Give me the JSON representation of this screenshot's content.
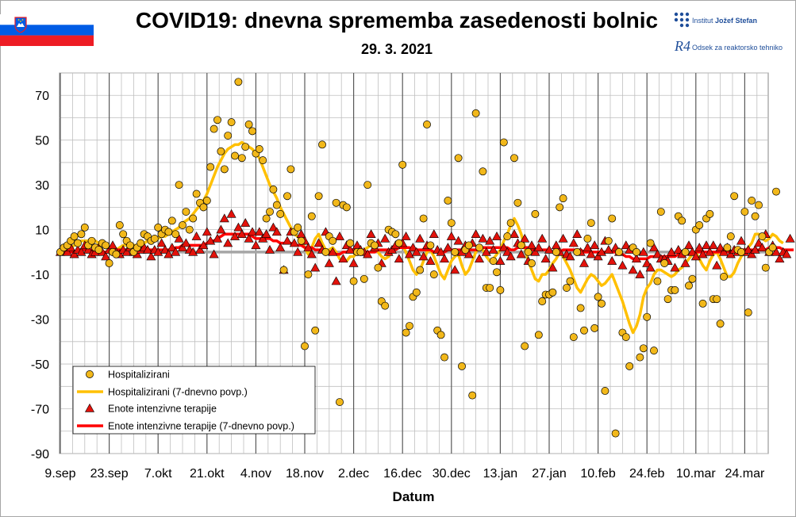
{
  "header": {
    "title": "COVID19: dnevna sprememba zasedenosti bolnic",
    "date": "29. 3. 2021",
    "logo_ijs_prefix": "Institut ",
    "logo_ijs_name": "Jožef Stefan",
    "logo_r4_mark": "R4",
    "logo_r4_text": "Odsek za reaktorsko tehniko"
  },
  "colors": {
    "hosp_marker": "#f2b81a",
    "hosp_line": "#ffc000",
    "icu_marker": "#e3120b",
    "icu_line": "#ff0000",
    "zero_line": "#a6a6a6",
    "grid": "#bfbfbf",
    "vgrid_major": "#595959"
  },
  "chart_data": {
    "type": "scatter",
    "title": "COVID19: dnevna sprememba zasedenosti bolnic",
    "subtitle": "29. 3. 2021",
    "xlabel": "Datum",
    "ylabel": "",
    "ylim": [
      -90,
      80
    ],
    "yticks": [
      70,
      50,
      30,
      10,
      -10,
      -30,
      -50,
      -70,
      -90
    ],
    "x_start": "2020-09-09",
    "x_end": "2021-03-29",
    "xticks": [
      "9.sep",
      "23.sep",
      "7.okt",
      "21.okt",
      "4.nov",
      "18.nov",
      "2.dec",
      "16.dec",
      "30.dec",
      "13.jan",
      "27.jan",
      "10.feb",
      "24.feb",
      "10.mar",
      "24.mar"
    ],
    "grid": true,
    "legend_position": "bottom-left",
    "legend": [
      "Hospitalizirani",
      "Hospitalizirani (7-dnevno povp.)",
      "Enote intenzivne terapije",
      "Enote intenzivne terapije (7-dnevno povp.)"
    ],
    "series": [
      {
        "name": "Hospitalizirani",
        "kind": "points",
        "values": [
          0,
          2,
          3,
          5,
          7,
          4,
          8,
          11,
          3,
          5,
          2,
          1,
          4,
          3,
          -5,
          0,
          -1,
          12,
          8,
          5,
          3,
          0,
          2,
          4,
          8,
          7,
          5,
          6,
          11,
          8,
          10,
          9,
          14,
          8,
          30,
          12,
          18,
          10,
          15,
          26,
          22,
          20,
          23,
          38,
          55,
          59,
          45,
          37,
          52,
          58,
          43,
          76,
          42,
          47,
          57,
          54,
          44,
          46,
          41,
          15,
          18,
          28,
          21,
          17,
          -8,
          25,
          37,
          9,
          11,
          5,
          -42,
          -10,
          16,
          -35,
          25,
          48,
          0,
          7,
          5,
          22,
          -67,
          21,
          20,
          4,
          -13,
          0,
          0,
          -12,
          30,
          4,
          3,
          -7,
          -22,
          -24,
          10,
          9,
          8,
          4,
          39,
          -36,
          -33,
          -20,
          -18,
          -8,
          15,
          57,
          3,
          -10,
          -35,
          -37,
          -47,
          23,
          13,
          0,
          42,
          -51,
          1,
          3,
          -64,
          62,
          2,
          36,
          -16,
          -16,
          -4,
          -9,
          -17,
          49,
          7,
          13,
          42,
          22,
          3,
          -42,
          0,
          -5,
          17,
          -37,
          -22,
          -19,
          -19,
          -18,
          0,
          20,
          24,
          -16,
          -13,
          -38,
          0,
          -25,
          -35,
          6,
          13,
          -34,
          -20,
          -23,
          -62,
          5,
          15,
          -81,
          0,
          -36,
          -38,
          -51,
          2,
          0,
          -47,
          -43,
          -29,
          4,
          -44,
          -13,
          18,
          -5,
          -21,
          -17,
          -17,
          16,
          14,
          0,
          -15,
          -12,
          10,
          12,
          -23,
          15,
          17,
          -21,
          -21,
          -32,
          -11,
          2,
          7,
          25,
          1,
          0,
          18,
          -27,
          23,
          16,
          21,
          7,
          -7,
          0,
          2,
          27
        ]
      },
      {
        "name": "Hospitalizirani (7-dnevno povp.)",
        "kind": "line",
        "values": [
          0,
          1,
          1,
          2,
          3,
          4,
          5,
          5,
          5,
          5,
          5,
          4,
          4,
          3,
          2,
          1,
          1,
          2,
          3,
          3,
          3,
          3,
          3,
          3,
          4,
          5,
          5,
          5,
          6,
          7,
          7,
          8,
          9,
          10,
          11,
          13,
          14,
          15,
          17,
          19,
          21,
          23,
          26,
          30,
          34,
          38,
          41,
          44,
          46,
          47,
          48,
          48,
          49,
          48,
          47,
          46,
          44,
          42,
          38,
          34,
          30,
          27,
          24,
          20,
          17,
          14,
          11,
          8,
          7,
          4,
          2,
          -1,
          2,
          6,
          8,
          4,
          1,
          1,
          2,
          0,
          -3,
          -4,
          -4,
          -2,
          -2,
          0,
          0,
          1,
          2,
          3,
          2,
          0,
          -2,
          -3,
          -2,
          0,
          2,
          3,
          3,
          0,
          -4,
          -8,
          -10,
          -8,
          -4,
          0,
          1,
          -2,
          -6,
          -10,
          -12,
          -8,
          -4,
          -2,
          -1,
          -6,
          -10,
          -8,
          -4,
          0,
          2,
          1,
          -2,
          -4,
          -3,
          -1,
          1,
          5,
          8,
          12,
          15,
          12,
          8,
          2,
          -4,
          -8,
          -12,
          -13,
          -10,
          -10,
          -8,
          -5,
          -3,
          0,
          -2,
          -5,
          -8,
          -12,
          -16,
          -18,
          -15,
          -12,
          -10,
          -11,
          -13,
          -15,
          -14,
          -12,
          -10,
          -14,
          -18,
          -22,
          -27,
          -32,
          -36,
          -33,
          -28,
          -20,
          -16,
          -14,
          -10,
          -8,
          -8,
          -9,
          -10,
          -11,
          -10,
          -8,
          -7,
          -5,
          -3,
          -1,
          0,
          -3,
          -6,
          -8,
          -4,
          -1,
          0,
          -3,
          -7,
          -11,
          -11,
          -9,
          -5,
          -2,
          0,
          2,
          4,
          8,
          8,
          6,
          5,
          6,
          8,
          7,
          5,
          4
        ]
      },
      {
        "name": "Enote intenzivne terapije",
        "kind": "points",
        "values": [
          0,
          1,
          0,
          2,
          -1,
          1,
          0,
          3,
          1,
          -1,
          0,
          2,
          0,
          -2,
          1,
          3,
          0,
          -1,
          1,
          0,
          2,
          0,
          -1,
          1,
          2,
          1,
          -2,
          1,
          0,
          4,
          1,
          -1,
          2,
          0,
          6,
          2,
          4,
          1,
          0,
          7,
          1,
          3,
          9,
          5,
          -1,
          6,
          10,
          15,
          4,
          17,
          7,
          11,
          8,
          13,
          6,
          9,
          3,
          9,
          6,
          8,
          1,
          11,
          9,
          2,
          -8,
          5,
          9,
          4,
          0,
          8,
          5,
          2,
          -1,
          -7,
          4,
          1,
          9,
          -5,
          0,
          -13,
          7,
          -3,
          3,
          1,
          -5,
          3,
          1,
          0,
          -1,
          8,
          2,
          4,
          -5,
          6,
          0,
          1,
          3,
          -3,
          4,
          7,
          -1,
          2,
          0,
          6,
          -2,
          3,
          -4,
          8,
          1,
          0,
          -3,
          2,
          7,
          -8,
          5,
          0,
          3,
          -1,
          4,
          8,
          -3,
          6,
          0,
          5,
          1,
          7,
          -4,
          2,
          0,
          -2,
          8,
          4,
          -1,
          6,
          -4,
          3,
          0,
          2,
          6,
          -3,
          1,
          -7,
          3,
          0,
          6,
          -1,
          -2,
          4,
          8,
          0,
          -5,
          2,
          -1,
          3,
          -2,
          0,
          5,
          1,
          -4,
          2,
          0,
          -6,
          3,
          1,
          -8,
          -3,
          -10,
          0,
          -5,
          -7,
          2,
          -1,
          -3,
          -3,
          -4,
          0,
          -7,
          1,
          -1,
          -5,
          3,
          0,
          -2,
          2,
          -1,
          3,
          0,
          3,
          -6,
          2,
          0,
          2,
          -1,
          1,
          0,
          5,
          0,
          1,
          -1,
          1,
          4,
          2,
          8,
          0,
          3,
          0,
          -3,
          0,
          -1,
          6
        ]
      },
      {
        "name": "Enote intenzivne terapije (7-dnevno povp.)",
        "kind": "line",
        "values": [
          0,
          0,
          0,
          0,
          0,
          1,
          1,
          1,
          1,
          1,
          0,
          0,
          0,
          0,
          0,
          0,
          1,
          1,
          1,
          1,
          1,
          1,
          1,
          1,
          1,
          1,
          1,
          1,
          1,
          1,
          1,
          1,
          1,
          2,
          2,
          3,
          3,
          3,
          3,
          3,
          3,
          3,
          4,
          5,
          5,
          6,
          7,
          8,
          8,
          8,
          8,
          8,
          8,
          8,
          8,
          7,
          6,
          6,
          6,
          6,
          6,
          5,
          5,
          4,
          4,
          4,
          4,
          3,
          3,
          3,
          2,
          2,
          2,
          1,
          1,
          1,
          1,
          0,
          0,
          -1,
          -1,
          0,
          0,
          1,
          1,
          1,
          1,
          0,
          0,
          0,
          0,
          1,
          1,
          1,
          1,
          1,
          1,
          2,
          2,
          2,
          2,
          1,
          1,
          1,
          1,
          1,
          1,
          0,
          0,
          0,
          0,
          1,
          1,
          1,
          1,
          1,
          1,
          1,
          1,
          1,
          1,
          2,
          2,
          2,
          2,
          2,
          2,
          2,
          2,
          1,
          1,
          2,
          2,
          2,
          2,
          1,
          1,
          1,
          1,
          1,
          1,
          0,
          0,
          0,
          1,
          1,
          1,
          1,
          1,
          1,
          0,
          0,
          0,
          0,
          0,
          0,
          0,
          0,
          0,
          0,
          -1,
          -1,
          -2,
          -2,
          -3,
          -3,
          -3,
          -3,
          -3,
          -2,
          -2,
          -2,
          -2,
          -2,
          -2,
          -2,
          -2,
          -1,
          -1,
          -1,
          -1,
          -1,
          0,
          0,
          0,
          0,
          0,
          0,
          0,
          0,
          0,
          0,
          0,
          0,
          0,
          1,
          1,
          1,
          1,
          1,
          1,
          1,
          1,
          2,
          2,
          2,
          2,
          1,
          1,
          1,
          1
        ]
      }
    ]
  }
}
